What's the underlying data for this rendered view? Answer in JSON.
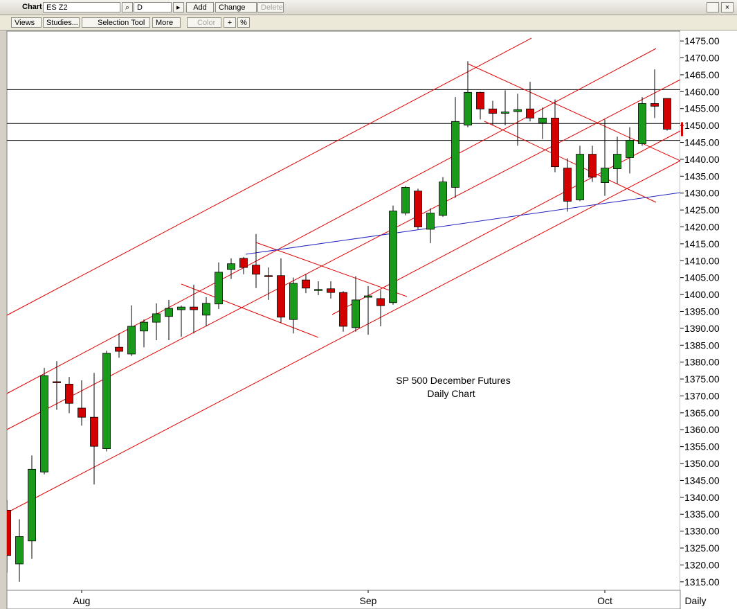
{
  "toolbar": {
    "title": "Chart",
    "symbol": "ES Z2",
    "period": "D",
    "add": "Add",
    "change": "Change",
    "delete": "Delete",
    "views": "Views",
    "studies": "Studies...",
    "selection_tool": "Selection Tool",
    "more": "More",
    "color": "Color",
    "percent": "%"
  },
  "chart_data": {
    "type": "candlestick",
    "annotations": [
      "SP 500 December Futures",
      "Daily Chart"
    ],
    "x_label": "Daily",
    "categories": [
      null,
      null,
      null,
      null,
      null,
      null,
      "Aug",
      null,
      null,
      null,
      null,
      null,
      null,
      null,
      null,
      null,
      null,
      null,
      null,
      null,
      null,
      null,
      null,
      null,
      null,
      null,
      null,
      null,
      null,
      "Sep",
      null,
      null,
      null,
      null,
      null,
      null,
      null,
      null,
      null,
      null,
      null,
      null,
      null,
      null,
      null,
      null,
      null,
      null,
      "Oct",
      null,
      null,
      null,
      null,
      null
    ],
    "open": [
      1336.2,
      1320.3,
      1327.1,
      1347.5,
      1374.2,
      1373.5,
      1366.4,
      1363.7,
      1354.4,
      1384.4,
      1382.4,
      1389.2,
      1391.8,
      1393.5,
      1395.5,
      1396.3,
      1393.9,
      1397.2,
      1407.4,
      1410.7,
      1408.7,
      1405.6,
      1405.6,
      1392.6,
      1404.3,
      1401.2,
      1401.7,
      1400.6,
      1390.2,
      1399.2,
      1398.8,
      1397.6,
      1424.1,
      1430.6,
      1419.3,
      1423.4,
      1431.7,
      1450.1,
      1459.8,
      1454.9,
      1453.6,
      1454.1,
      1454.9,
      1450.8,
      1452.2,
      1437.4,
      1428.0,
      1441.5,
      1433.1,
      1437.2,
      1440.5,
      1444.6,
      1456.5,
      1458.0
    ],
    "high": [
      1339.2,
      1333.5,
      1352.4,
      1378.3,
      1380.3,
      1375.6,
      1374.6,
      1376.8,
      1383.4,
      1388.5,
      1396.8,
      1392.6,
      1397.4,
      1398.4,
      1396.7,
      1402.9,
      1399.2,
      1409.5,
      1410.7,
      1411.1,
      1417.9,
      1408.0,
      1410.7,
      1405.0,
      1406.0,
      1403.9,
      1403.9,
      1401.0,
      1405.4,
      1402.5,
      1401.3,
      1426.3,
      1432.1,
      1431.3,
      1425.5,
      1434.7,
      1458.4,
      1469.0,
      1460.0,
      1457.3,
      1460.4,
      1459.4,
      1462.9,
      1455.3,
      1457.7,
      1440.3,
      1444.0,
      1444.0,
      1451.8,
      1446.7,
      1449.5,
      1458.4,
      1466.6,
      1458.0
    ],
    "low": [
      1317.7,
      1315.0,
      1321.8,
      1346.8,
      1365.9,
      1364.9,
      1361.2,
      1343.8,
      1353.6,
      1381.3,
      1381.8,
      1384.4,
      1386.5,
      1386.5,
      1387.5,
      1388.5,
      1390.6,
      1395.7,
      1404.6,
      1406.0,
      1401.9,
      1398.4,
      1391.6,
      1388.5,
      1400.4,
      1399.8,
      1398.8,
      1389.0,
      1389.0,
      1388.1,
      1390.6,
      1397.0,
      1423.4,
      1419.3,
      1415.2,
      1423.0,
      1428.6,
      1449.5,
      1451.8,
      1450.1,
      1450.1,
      1444.0,
      1451.2,
      1446.0,
      1436.2,
      1424.5,
      1427.6,
      1433.3,
      1429.2,
      1432.7,
      1435.8,
      1444.0,
      1452.2,
      1448.5
    ],
    "close": [
      1322.8,
      1328.4,
      1348.3,
      1376.0,
      1374.0,
      1367.8,
      1363.7,
      1355.1,
      1382.6,
      1383.2,
      1390.6,
      1391.8,
      1394.3,
      1395.9,
      1396.3,
      1395.5,
      1397.4,
      1406.6,
      1409.1,
      1408.0,
      1406.0,
      1405.4,
      1393.3,
      1403.3,
      1401.9,
      1401.5,
      1400.6,
      1390.6,
      1398.4,
      1399.6,
      1396.7,
      1424.7,
      1431.7,
      1420.0,
      1424.1,
      1433.3,
      1451.2,
      1459.8,
      1454.9,
      1453.6,
      1454.0,
      1454.7,
      1452.2,
      1452.2,
      1437.8,
      1427.6,
      1441.5,
      1434.7,
      1437.4,
      1441.5,
      1445.6,
      1456.5,
      1455.7,
      1448.9
    ],
    "up_color": "#1a9a1a",
    "down_color": "#d40000",
    "price_levels": [
      1460.6,
      1450.6,
      1445.6
    ],
    "ylim": [
      1312.5,
      1477.9
    ],
    "yticks": [
      {
        "value": 1315,
        "label": "1315.00"
      },
      {
        "value": 1320,
        "label": "1320.00"
      },
      {
        "value": 1325,
        "label": "1325.00"
      },
      {
        "value": 1330,
        "label": "1330.00"
      },
      {
        "value": 1335,
        "label": "1335.00"
      },
      {
        "value": 1340,
        "label": "1340.00"
      },
      {
        "value": 1345,
        "label": "1345.00"
      },
      {
        "value": 1350,
        "label": "1350.00"
      },
      {
        "value": 1355,
        "label": "1355.00"
      },
      {
        "value": 1360,
        "label": "1360.00"
      },
      {
        "value": 1365,
        "label": "1365.00"
      },
      {
        "value": 1370,
        "label": "1370.00"
      },
      {
        "value": 1375,
        "label": "1375.00"
      },
      {
        "value": 1380,
        "label": "1380.00"
      },
      {
        "value": 1385,
        "label": "1385.00"
      },
      {
        "value": 1390,
        "label": "1390.00"
      },
      {
        "value": 1395,
        "label": "1395.00"
      },
      {
        "value": 1400,
        "label": "1400.00"
      },
      {
        "value": 1405,
        "label": "1405.00"
      },
      {
        "value": 1410,
        "label": "1410.00"
      },
      {
        "value": 1415,
        "label": "1415.00"
      },
      {
        "value": 1420,
        "label": "1420.00"
      },
      {
        "value": 1425,
        "label": "1425.00"
      },
      {
        "value": 1430,
        "label": "1430.00"
      },
      {
        "value": 1435,
        "label": "1435.00"
      },
      {
        "value": 1440,
        "label": "1440.00"
      },
      {
        "value": 1445,
        "label": "1445.00"
      },
      {
        "value": 1450,
        "label": "1450.00"
      },
      {
        "value": 1455,
        "label": "1455.00"
      },
      {
        "value": 1460,
        "label": "1460.00"
      },
      {
        "value": 1465,
        "label": "1465.00"
      },
      {
        "value": 1470,
        "label": "1470.00"
      },
      {
        "value": 1475,
        "label": "1475.00"
      }
    ],
    "grid": false
  }
}
